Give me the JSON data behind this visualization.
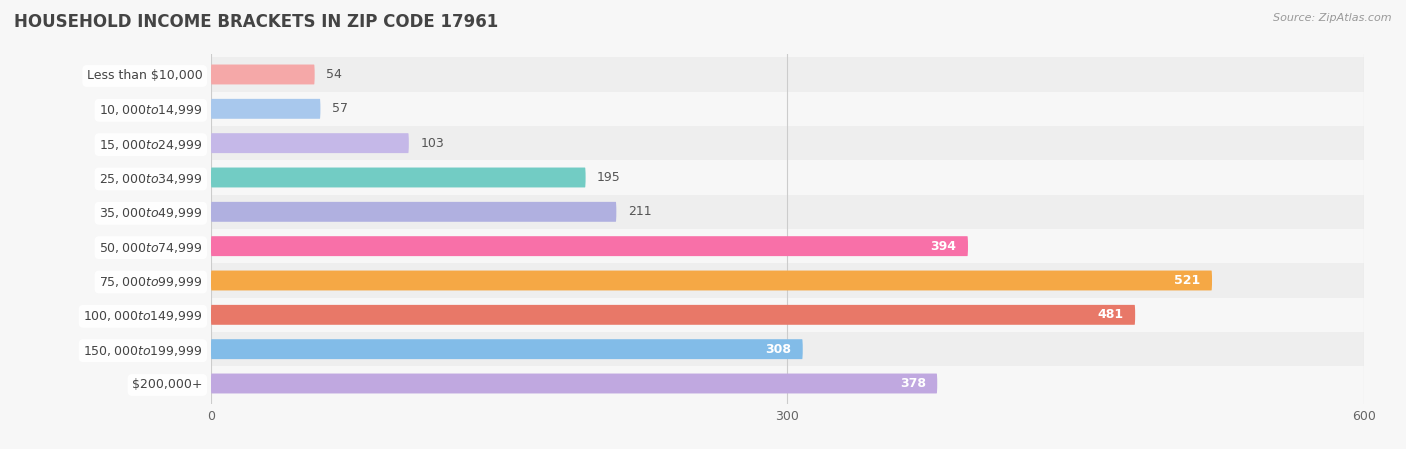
{
  "title": "HOUSEHOLD INCOME BRACKETS IN ZIP CODE 17961",
  "source_text": "Source: ZipAtlas.com",
  "categories": [
    "Less than $10,000",
    "$10,000 to $14,999",
    "$15,000 to $24,999",
    "$25,000 to $34,999",
    "$35,000 to $49,999",
    "$50,000 to $74,999",
    "$75,000 to $99,999",
    "$100,000 to $149,999",
    "$150,000 to $199,999",
    "$200,000+"
  ],
  "values": [
    54,
    57,
    103,
    195,
    211,
    394,
    521,
    481,
    308,
    378
  ],
  "bar_colors": [
    "#f5a8a8",
    "#a8c8ed",
    "#c5b8e8",
    "#72ccc4",
    "#b0b0e0",
    "#f870a8",
    "#f5a845",
    "#e87868",
    "#82bce8",
    "#c0a8e0"
  ],
  "xlim": [
    0,
    600
  ],
  "xticks": [
    0,
    300,
    600
  ],
  "background_color": "#f7f7f7",
  "row_bg_even": "#eeeeee",
  "row_bg_odd": "#f7f7f7",
  "title_fontsize": 12,
  "bar_height": 0.58,
  "value_threshold": 220,
  "label_fontsize": 9,
  "value_fontsize": 9
}
